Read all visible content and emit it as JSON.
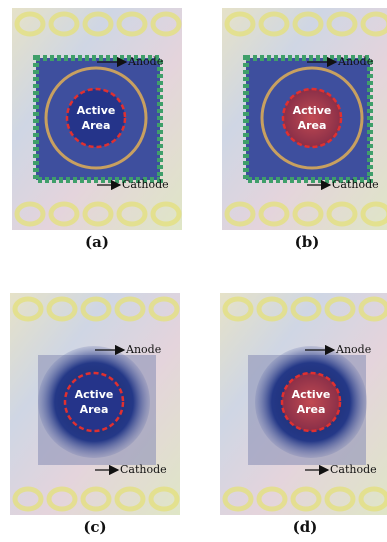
{
  "panels": [
    {
      "caption": "(a)",
      "anode": "Anode",
      "cathode": "Cathode",
      "active": [
        "Active",
        "Area"
      ]
    },
    {
      "caption": "(b)",
      "anode": "Anode",
      "cathode": "Cathode",
      "active": [
        "Active",
        "Area"
      ]
    },
    {
      "caption": "(c)",
      "anode": "Anode",
      "cathode": "Cathode",
      "active": [
        "Active",
        "Area"
      ]
    },
    {
      "caption": "(d)",
      "anode": "Anode",
      "cathode": "Cathode",
      "active": [
        "Active",
        "Area"
      ]
    }
  ]
}
